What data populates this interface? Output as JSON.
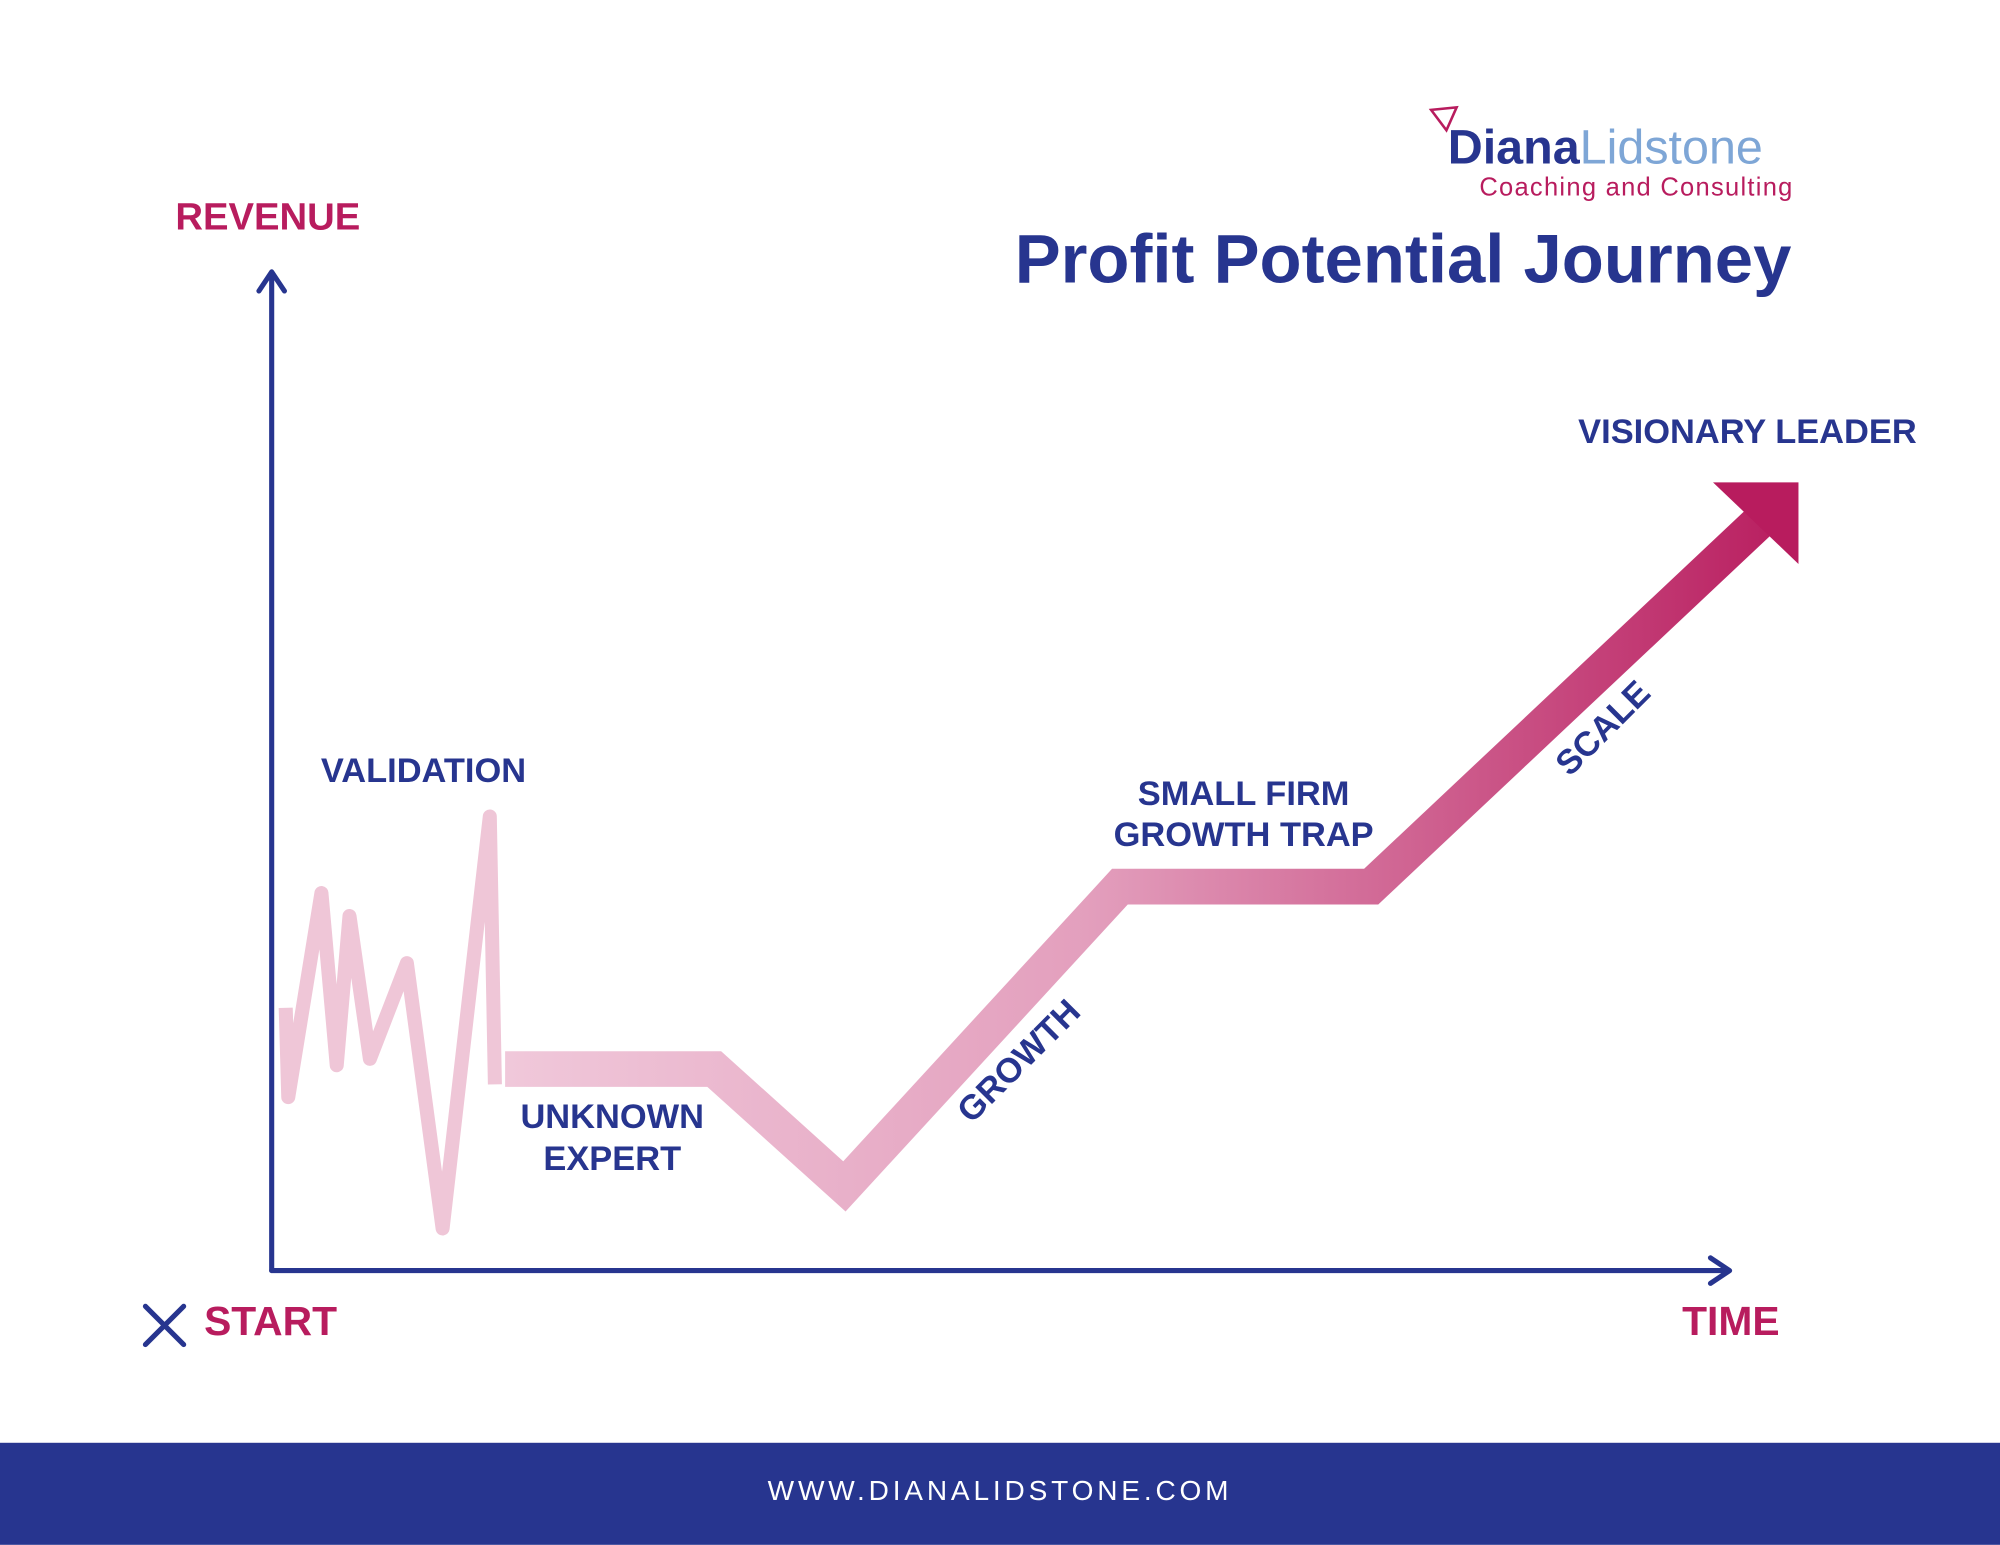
{
  "logo": {
    "first": "Diana",
    "second": "Lidstone",
    "tagline": "Coaching and Consulting"
  },
  "title": "Profit Potential Journey",
  "axes": {
    "y_label": "REVENUE",
    "x_label": "TIME",
    "origin_label": "START"
  },
  "stages": {
    "validation": "VALIDATION",
    "unknown_expert": [
      "UNKNOWN",
      "EXPERT"
    ],
    "growth": "GROWTH",
    "growth_trap": [
      "SMALL FIRM",
      "GROWTH TRAP"
    ],
    "scale": "SCALE",
    "visionary_leader": "VISIONARY LEADER"
  },
  "footer": "WWW.DIANALIDSTONE.COM"
}
